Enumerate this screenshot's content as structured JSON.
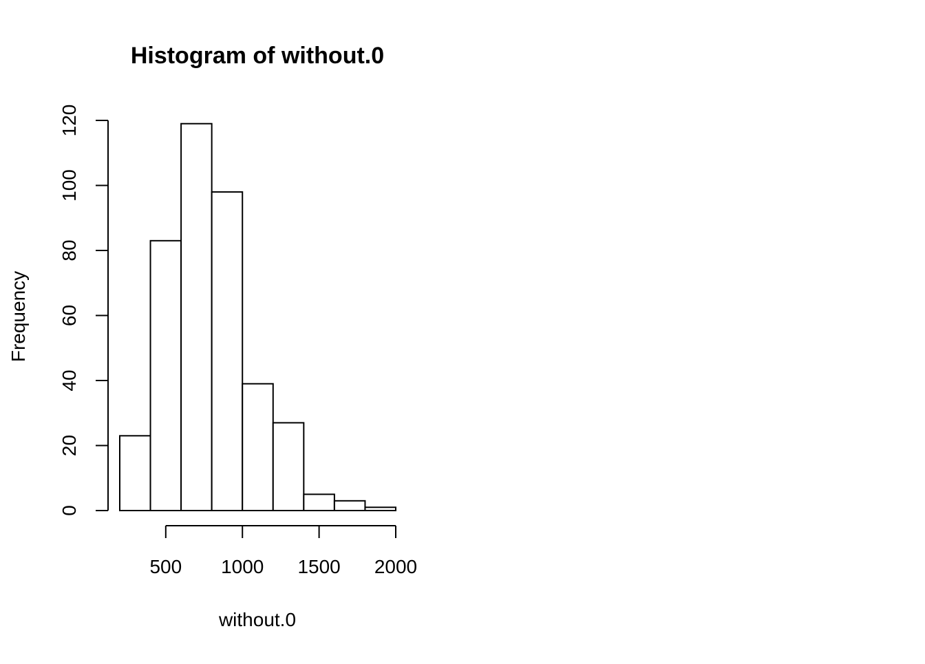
{
  "chart_data": {
    "type": "bar",
    "title": "Histogram of without.0",
    "xlabel": "without.0",
    "ylabel": "Frequency",
    "bin_edges": [
      200,
      400,
      600,
      800,
      1000,
      1200,
      1400,
      1600,
      1800,
      2000
    ],
    "values": [
      23,
      83,
      119,
      98,
      39,
      27,
      5,
      3,
      1
    ],
    "x_ticks": [
      500,
      1000,
      1500,
      2000
    ],
    "y_ticks": [
      0,
      20,
      40,
      60,
      80,
      100,
      120
    ],
    "xlim": [
      200,
      2000
    ],
    "ylim": [
      0,
      120
    ],
    "grid": false,
    "bar_fill": "#ffffff",
    "bar_stroke": "#000000"
  }
}
